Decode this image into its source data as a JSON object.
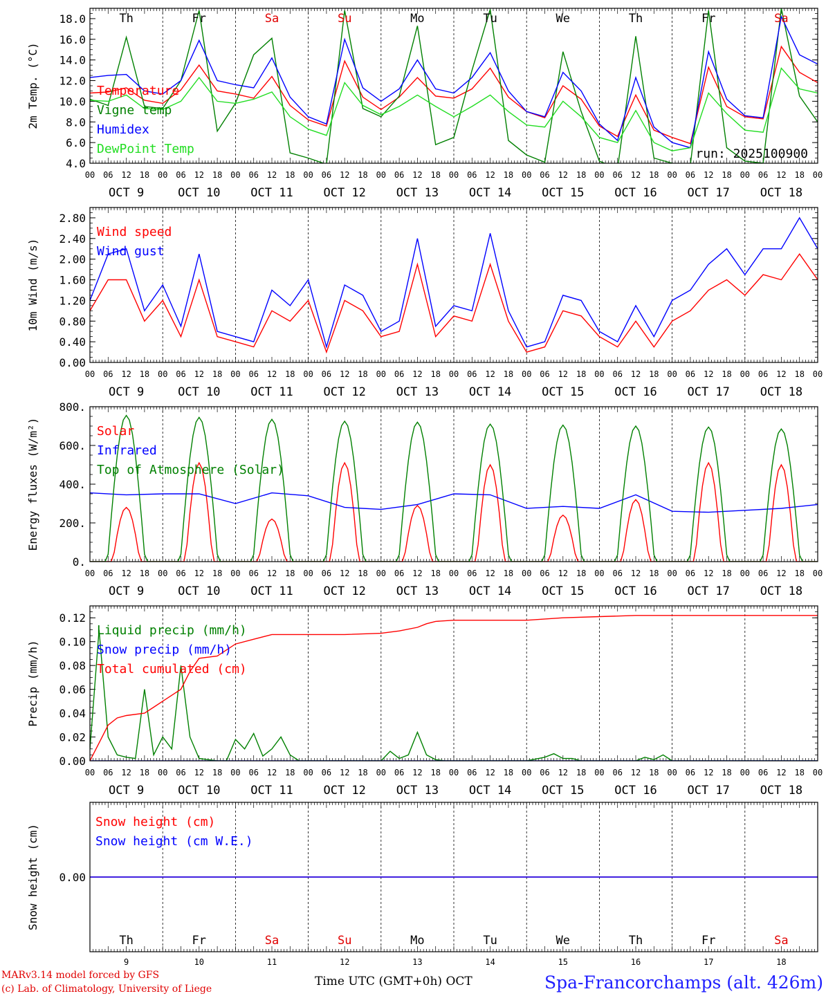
{
  "run_label": "run: 2025100900",
  "x_title": "Time UTC (GMT+0h) OCT",
  "station": "Spa-Francorchamps (alt. 426m)",
  "credits": [
    "MARv3.14 model forced by GFS",
    "(c) Lab. of Climatology, University of Liege"
  ],
  "hour_labels": [
    "00",
    "06",
    "12",
    "18"
  ],
  "date_labels": [
    "OCT  9",
    "OCT 10",
    "OCT 11",
    "OCT 12",
    "OCT 13",
    "OCT 14",
    "OCT 15",
    "OCT 16",
    "OCT 17",
    "OCT 18"
  ],
  "day_names": [
    "Th",
    "Fr",
    "Sa",
    "Su",
    "Mo",
    "Tu",
    "We",
    "Th",
    "Fr",
    "Sa"
  ],
  "day_colors": [
    "#000000",
    "#000000",
    "#e00000",
    "#e00000",
    "#000000",
    "#000000",
    "#000000",
    "#000000",
    "#000000",
    "#e00000"
  ],
  "day_numbers": [
    "9",
    "10",
    "11",
    "12",
    "13",
    "14",
    "15",
    "16",
    "17",
    "18"
  ],
  "colors": {
    "red": "#ff0000",
    "blue": "#0000ff",
    "dark_green": "#008000",
    "light_green": "#22dd22"
  },
  "chart_data": [
    {
      "type": "line",
      "ylabel": "2m Temp. (°C)",
      "ylim": [
        4,
        19
      ],
      "yticks": [
        "4.0",
        "6.0",
        "8.0",
        "10.0",
        "12.0",
        "14.0",
        "16.0",
        "18.0"
      ],
      "x_unit": "hours since OCT 9 00 UTC",
      "series": [
        {
          "name": "Temperature",
          "color": "#ff0000",
          "x": [
            0,
            6,
            12,
            18,
            24,
            30,
            36,
            42,
            48,
            54,
            60,
            66,
            72,
            78,
            84,
            90,
            96,
            102,
            108,
            114,
            120,
            126,
            132,
            138,
            144,
            150,
            156,
            162,
            168,
            174,
            180,
            186,
            192,
            198,
            204,
            210,
            216,
            222,
            228,
            234,
            240
          ],
          "y": [
            10.8,
            10.9,
            11.3,
            10.1,
            9.8,
            11.1,
            13.5,
            11.0,
            10.7,
            10.3,
            12.4,
            9.6,
            8.2,
            7.6,
            13.9,
            10.4,
            9.2,
            10.4,
            12.3,
            10.5,
            10.3,
            11.2,
            13.2,
            10.4,
            9.0,
            8.4,
            11.5,
            10.2,
            7.6,
            6.6,
            10.6,
            7.2,
            6.5,
            5.9,
            13.3,
            9.5,
            8.5,
            8.3,
            15.3,
            12.8,
            11.8
          ]
        },
        {
          "name": "Vigne temp",
          "color": "#008000",
          "x": [
            0,
            6,
            12,
            18,
            24,
            30,
            36,
            42,
            48,
            54,
            60,
            66,
            72,
            78,
            84,
            90,
            96,
            102,
            108,
            114,
            120,
            126,
            132,
            138,
            144,
            150,
            156,
            162,
            168,
            174,
            180,
            186,
            192,
            198,
            204,
            210,
            216,
            222,
            228,
            234,
            240
          ],
          "y": [
            10.2,
            9.6,
            16.2,
            9.5,
            9.3,
            12.0,
            18.8,
            7.1,
            9.8,
            14.5,
            16.1,
            5.0,
            4.5,
            3.9,
            18.8,
            9.3,
            8.5,
            10.5,
            17.3,
            5.8,
            6.5,
            13.0,
            18.9,
            6.2,
            4.8,
            4.1,
            14.8,
            9.0,
            4.2,
            3.5,
            16.3,
            4.5,
            4.0,
            3.8,
            18.8,
            5.5,
            4.2,
            4.0,
            19.0,
            10.5,
            8.0
          ]
        },
        {
          "name": "Humidex",
          "color": "#0000ff",
          "x": [
            0,
            6,
            12,
            18,
            24,
            30,
            36,
            42,
            48,
            54,
            60,
            66,
            72,
            78,
            84,
            90,
            96,
            102,
            108,
            114,
            120,
            126,
            132,
            138,
            144,
            150,
            156,
            162,
            168,
            174,
            180,
            186,
            192,
            198,
            204,
            210,
            216,
            222,
            228,
            234,
            240
          ],
          "y": [
            12.3,
            12.5,
            12.6,
            11.0,
            10.7,
            12.0,
            15.9,
            12.0,
            11.6,
            11.3,
            14.2,
            10.4,
            8.5,
            7.8,
            16.0,
            11.3,
            10.0,
            11.2,
            14.0,
            11.2,
            10.8,
            12.3,
            14.7,
            11.0,
            9.0,
            8.5,
            12.8,
            11.0,
            7.8,
            6.2,
            12.3,
            7.5,
            6.0,
            5.5,
            14.8,
            10.2,
            8.6,
            8.4,
            18.2,
            14.5,
            13.6
          ]
        },
        {
          "name": "DewPoint Temp",
          "color": "#22dd22",
          "x": [
            0,
            6,
            12,
            18,
            24,
            30,
            36,
            42,
            48,
            54,
            60,
            66,
            72,
            78,
            84,
            90,
            96,
            102,
            108,
            114,
            120,
            126,
            132,
            138,
            144,
            150,
            156,
            162,
            168,
            174,
            180,
            186,
            192,
            198,
            204,
            210,
            216,
            222,
            228,
            234,
            240
          ],
          "y": [
            10.1,
            10.0,
            10.6,
            9.3,
            9.2,
            10.0,
            12.3,
            10.0,
            9.8,
            10.2,
            10.9,
            8.5,
            7.3,
            6.7,
            11.8,
            9.6,
            8.7,
            9.5,
            10.6,
            9.5,
            8.5,
            9.5,
            10.6,
            9.0,
            7.7,
            7.5,
            10.0,
            8.5,
            6.5,
            6.0,
            9.1,
            6.0,
            5.2,
            5.5,
            10.8,
            8.8,
            7.2,
            7.0,
            13.2,
            11.2,
            10.8
          ]
        }
      ]
    },
    {
      "type": "line",
      "ylabel": "10m Wind (m/s)",
      "ylim": [
        0,
        3.0
      ],
      "yticks": [
        "0.00",
        "0.40",
        "0.80",
        "1.20",
        "1.60",
        "2.00",
        "2.40",
        "2.80"
      ],
      "series": [
        {
          "name": "Wind speed",
          "color": "#ff0000",
          "x": [
            0,
            6,
            12,
            18,
            24,
            30,
            36,
            42,
            48,
            54,
            60,
            66,
            72,
            78,
            84,
            90,
            96,
            102,
            108,
            114,
            120,
            126,
            132,
            138,
            144,
            150,
            156,
            162,
            168,
            174,
            180,
            186,
            192,
            198,
            204,
            210,
            216,
            222,
            228,
            234,
            240
          ],
          "y": [
            1.0,
            1.6,
            1.6,
            0.8,
            1.2,
            0.5,
            1.6,
            0.5,
            0.4,
            0.3,
            1.0,
            0.8,
            1.2,
            0.2,
            1.2,
            1.0,
            0.5,
            0.6,
            1.9,
            0.5,
            0.9,
            0.8,
            1.9,
            0.8,
            0.2,
            0.3,
            1.0,
            0.9,
            0.5,
            0.3,
            0.8,
            0.3,
            0.8,
            1.0,
            1.4,
            1.6,
            1.3,
            1.7,
            1.6,
            2.1,
            1.6
          ]
        },
        {
          "name": "Wind gust",
          "color": "#0000ff",
          "x": [
            0,
            6,
            12,
            18,
            24,
            30,
            36,
            42,
            48,
            54,
            60,
            66,
            72,
            78,
            84,
            90,
            96,
            102,
            108,
            114,
            120,
            126,
            132,
            138,
            144,
            150,
            156,
            162,
            168,
            174,
            180,
            186,
            192,
            198,
            204,
            210,
            216,
            222,
            228,
            234,
            240
          ],
          "y": [
            1.2,
            2.1,
            2.2,
            1.0,
            1.5,
            0.7,
            2.1,
            0.6,
            0.5,
            0.4,
            1.4,
            1.1,
            1.6,
            0.3,
            1.5,
            1.3,
            0.6,
            0.8,
            2.4,
            0.7,
            1.1,
            1.0,
            2.5,
            1.0,
            0.3,
            0.4,
            1.3,
            1.2,
            0.6,
            0.4,
            1.1,
            0.5,
            1.2,
            1.4,
            1.9,
            2.2,
            1.7,
            2.2,
            2.2,
            2.8,
            2.2
          ]
        }
      ]
    },
    {
      "type": "line",
      "ylabel": "Energy fluxes (W/m²)",
      "ylim": [
        0,
        800
      ],
      "yticks": [
        "0.",
        "200.",
        "400.",
        "600.",
        "800."
      ],
      "series": [
        {
          "name": "Solar",
          "color": "#ff0000",
          "peaks": [
            280,
            510,
            220,
            510,
            290,
            500,
            240,
            320,
            510,
            500
          ]
        },
        {
          "name": "Infrared",
          "color": "#0000ff",
          "x": [
            0,
            12,
            24,
            36,
            48,
            60,
            72,
            84,
            96,
            108,
            120,
            132,
            144,
            156,
            168,
            180,
            192,
            204,
            216,
            228,
            240
          ],
          "y": [
            355,
            345,
            350,
            350,
            300,
            355,
            340,
            280,
            270,
            295,
            350,
            345,
            275,
            285,
            275,
            345,
            260,
            255,
            265,
            275,
            295
          ]
        },
        {
          "name": "Top of Atmosphere (Solar)",
          "color": "#008000",
          "peaks": [
            755,
            745,
            735,
            725,
            720,
            710,
            705,
            700,
            695,
            685
          ]
        }
      ]
    },
    {
      "type": "line",
      "ylabel": "Precip (mm/h)",
      "ylim": [
        0,
        0.13
      ],
      "yticks": [
        "0.00",
        "0.02",
        "0.04",
        "0.06",
        "0.08",
        "0.10",
        "0.12"
      ],
      "series": [
        {
          "name": "Liquid precip (mm/h)",
          "color": "#008000",
          "x": [
            0,
            3,
            6,
            9,
            12,
            15,
            18,
            21,
            24,
            27,
            30,
            33,
            36,
            39,
            42,
            45,
            48,
            51,
            54,
            57,
            60,
            63,
            66,
            69,
            72,
            84,
            96,
            99,
            102,
            105,
            108,
            111,
            114,
            117,
            120,
            132,
            144,
            150,
            153,
            156,
            159,
            162,
            168,
            180,
            183,
            186,
            189,
            192,
            240
          ],
          "y": [
            0.01,
            0.11,
            0.02,
            0.005,
            0.003,
            0.002,
            0.06,
            0.005,
            0.02,
            0.01,
            0.08,
            0.02,
            0.002,
            0.001,
            0.0,
            0.0,
            0.018,
            0.01,
            0.023,
            0.004,
            0.01,
            0.02,
            0.005,
            0.0,
            0.0,
            0.0,
            0.0,
            0.008,
            0.002,
            0.005,
            0.024,
            0.005,
            0.001,
            0.0,
            0.0,
            0.0,
            0.0,
            0.003,
            0.006,
            0.002,
            0.002,
            0.0,
            0.0,
            0.0,
            0.003,
            0.001,
            0.005,
            0.0,
            0.0
          ]
        },
        {
          "name": "Snow precip (mm/h)",
          "color": "#0000ff",
          "x": [
            0,
            240
          ],
          "y": [
            0,
            0
          ]
        },
        {
          "name": "Total cumulated (cm)",
          "color": "#ff0000",
          "x": [
            0,
            3,
            6,
            9,
            12,
            18,
            21,
            24,
            30,
            33,
            36,
            42,
            48,
            54,
            60,
            66,
            72,
            84,
            96,
            102,
            108,
            111,
            114,
            120,
            132,
            144,
            156,
            168,
            180,
            192,
            204,
            216,
            228,
            240
          ],
          "y": [
            0.0,
            0.015,
            0.03,
            0.036,
            0.038,
            0.04,
            0.045,
            0.05,
            0.06,
            0.075,
            0.086,
            0.088,
            0.098,
            0.102,
            0.106,
            0.106,
            0.106,
            0.106,
            0.107,
            0.109,
            0.112,
            0.115,
            0.117,
            0.118,
            0.118,
            0.118,
            0.12,
            0.121,
            0.122,
            0.122,
            0.122,
            0.122,
            0.122,
            0.122
          ]
        }
      ]
    },
    {
      "type": "line",
      "ylabel": "Snow height (cm)",
      "ylim": [
        -1,
        1
      ],
      "yticks": [
        "0.00"
      ],
      "series": [
        {
          "name": "Snow height (cm)",
          "color": "#ff0000",
          "x": [
            0,
            240
          ],
          "y": [
            0,
            0
          ]
        },
        {
          "name": "Snow height (cm W.E.)",
          "color": "#0000ff",
          "x": [
            0,
            240
          ],
          "y": [
            0,
            0
          ]
        }
      ]
    }
  ]
}
